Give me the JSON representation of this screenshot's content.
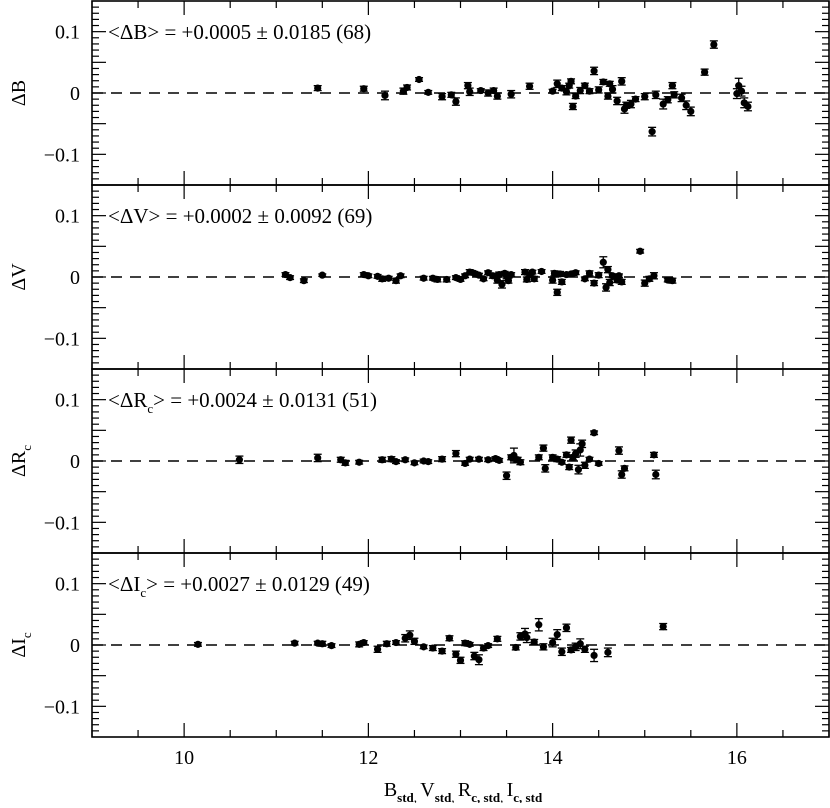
{
  "chart_data": {
    "type": "scatter",
    "xlabel": {
      "parts": [
        {
          "main": "B",
          "sub": "std"
        },
        {
          "main": "V",
          "sub": "std"
        },
        {
          "main": "R",
          "sub": "c, std"
        },
        {
          "main": "I",
          "sub": "c, std"
        }
      ],
      "separator": ",  "
    },
    "xlim": [
      9,
      17
    ],
    "x_ticks": [
      10,
      12,
      14,
      16
    ],
    "ylim": [
      -0.15,
      0.15
    ],
    "y_ticks": [
      0.1,
      0,
      -0.1
    ],
    "y_tick_labels": [
      "0.1",
      "0",
      "−0.1"
    ],
    "reference_line": {
      "y": 0,
      "style": "dashed"
    },
    "panels": [
      {
        "ylabel": {
          "main": "ΔB",
          "sub": ""
        },
        "annotation": {
          "pre": "<ΔB",
          "sub": "",
          "post": "> = +0.0005 ± 0.0185 (68)"
        },
        "points": [
          [
            11.45,
            0.008,
            0.004
          ],
          [
            11.95,
            0.007,
            0.004
          ],
          [
            12.18,
            -0.004,
            0.007
          ],
          [
            12.38,
            0.003,
            0.005
          ],
          [
            12.42,
            0.009,
            0.004
          ],
          [
            12.55,
            0.022,
            0.003
          ],
          [
            12.65,
            0.001,
            0.003
          ],
          [
            12.8,
            -0.006,
            0.005
          ],
          [
            12.9,
            -0.003,
            0.004
          ],
          [
            12.95,
            -0.014,
            0.006
          ],
          [
            13.08,
            0.012,
            0.005
          ],
          [
            13.1,
            0.002,
            0.006
          ],
          [
            13.22,
            0.004,
            0.003
          ],
          [
            13.3,
            0.0,
            0.005
          ],
          [
            13.36,
            0.004,
            0.004
          ],
          [
            13.4,
            -0.005,
            0.005
          ],
          [
            13.55,
            -0.002,
            0.006
          ],
          [
            13.75,
            0.011,
            0.005
          ],
          [
            14.0,
            0.003,
            0.003
          ],
          [
            14.05,
            0.015,
            0.006
          ],
          [
            14.1,
            0.008,
            0.004
          ],
          [
            14.15,
            0.002,
            0.005
          ],
          [
            14.18,
            0.012,
            0.004
          ],
          [
            14.2,
            0.019,
            0.004
          ],
          [
            14.22,
            -0.022,
            0.005
          ],
          [
            14.25,
            -0.005,
            0.004
          ],
          [
            14.3,
            0.004,
            0.005
          ],
          [
            14.35,
            0.012,
            0.004
          ],
          [
            14.4,
            0.003,
            0.004
          ],
          [
            14.45,
            0.036,
            0.006
          ],
          [
            14.5,
            0.005,
            0.005
          ],
          [
            14.55,
            0.018,
            0.004
          ],
          [
            14.6,
            -0.005,
            0.005
          ],
          [
            14.62,
            0.015,
            0.004
          ],
          [
            14.65,
            0.006,
            0.006
          ],
          [
            14.7,
            -0.013,
            0.006
          ],
          [
            14.75,
            0.019,
            0.006
          ],
          [
            14.78,
            -0.026,
            0.007
          ],
          [
            14.8,
            -0.02,
            0.005
          ],
          [
            14.85,
            -0.018,
            0.006
          ],
          [
            14.9,
            -0.01,
            0.004
          ],
          [
            15.0,
            -0.006,
            0.005
          ],
          [
            15.08,
            -0.063,
            0.007
          ],
          [
            15.12,
            -0.003,
            0.006
          ],
          [
            15.2,
            -0.018,
            0.008
          ],
          [
            15.25,
            -0.011,
            0.005
          ],
          [
            15.3,
            0.012,
            0.005
          ],
          [
            15.32,
            -0.003,
            0.005
          ],
          [
            15.4,
            -0.008,
            0.006
          ],
          [
            15.45,
            -0.02,
            0.007
          ],
          [
            15.5,
            -0.03,
            0.007
          ],
          [
            15.65,
            0.034,
            0.005
          ],
          [
            15.75,
            0.079,
            0.006
          ],
          [
            16.0,
            -0.001,
            0.008
          ],
          [
            16.02,
            0.012,
            0.012
          ],
          [
            16.05,
            0.003,
            0.008
          ],
          [
            16.08,
            -0.016,
            0.008
          ],
          [
            16.12,
            -0.022,
            0.007
          ]
        ]
      },
      {
        "ylabel": {
          "main": "ΔV",
          "sub": ""
        },
        "annotation": {
          "pre": "<ΔV",
          "sub": "",
          "post": "> = +0.0002 ± 0.0092 (69)"
        },
        "points": [
          [
            11.1,
            0.004,
            0.003
          ],
          [
            11.15,
            -0.001,
            0.003
          ],
          [
            11.3,
            -0.006,
            0.003
          ],
          [
            11.5,
            0.003,
            0.002
          ],
          [
            11.95,
            0.004,
            0.003
          ],
          [
            12.0,
            0.002,
            0.003
          ],
          [
            12.1,
            0.001,
            0.003
          ],
          [
            12.15,
            -0.003,
            0.004
          ],
          [
            12.22,
            -0.002,
            0.003
          ],
          [
            12.3,
            -0.006,
            0.004
          ],
          [
            12.35,
            0.002,
            0.003
          ],
          [
            12.6,
            -0.002,
            0.003
          ],
          [
            12.7,
            -0.002,
            0.003
          ],
          [
            12.75,
            -0.004,
            0.004
          ],
          [
            12.85,
            -0.004,
            0.004
          ],
          [
            12.95,
            -0.001,
            0.003
          ],
          [
            13.0,
            -0.004,
            0.003
          ],
          [
            13.05,
            0.002,
            0.003
          ],
          [
            13.1,
            0.008,
            0.004
          ],
          [
            13.15,
            0.006,
            0.003
          ],
          [
            13.2,
            0.003,
            0.003
          ],
          [
            13.25,
            -0.003,
            0.003
          ],
          [
            13.3,
            0.007,
            0.003
          ],
          [
            13.35,
            0.002,
            0.004
          ],
          [
            13.4,
            -0.005,
            0.005
          ],
          [
            13.42,
            0.004,
            0.004
          ],
          [
            13.45,
            -0.012,
            0.006
          ],
          [
            13.48,
            0.006,
            0.003
          ],
          [
            13.5,
            0.001,
            0.004
          ],
          [
            13.52,
            -0.006,
            0.004
          ],
          [
            13.55,
            0.004,
            0.003
          ],
          [
            13.7,
            0.008,
            0.004
          ],
          [
            13.72,
            -0.004,
            0.004
          ],
          [
            13.75,
            0.004,
            0.003
          ],
          [
            13.78,
            0.008,
            0.003
          ],
          [
            13.8,
            -0.003,
            0.004
          ],
          [
            13.88,
            0.009,
            0.003
          ],
          [
            14.0,
            -0.005,
            0.005
          ],
          [
            14.02,
            0.006,
            0.004
          ],
          [
            14.05,
            -0.025,
            0.005
          ],
          [
            14.08,
            0.005,
            0.004
          ],
          [
            14.1,
            -0.008,
            0.004
          ],
          [
            14.15,
            0.004,
            0.003
          ],
          [
            14.2,
            0.005,
            0.003
          ],
          [
            14.25,
            0.007,
            0.003
          ],
          [
            14.35,
            -0.003,
            0.003
          ],
          [
            14.4,
            0.006,
            0.004
          ],
          [
            14.45,
            -0.01,
            0.004
          ],
          [
            14.5,
            0.003,
            0.004
          ],
          [
            14.55,
            0.024,
            0.009
          ],
          [
            14.58,
            -0.017,
            0.006
          ],
          [
            14.6,
            0.012,
            0.005
          ],
          [
            14.62,
            -0.009,
            0.005
          ],
          [
            14.65,
            0.002,
            0.003
          ],
          [
            14.7,
            -0.005,
            0.004
          ],
          [
            14.72,
            0.002,
            0.003
          ],
          [
            14.75,
            -0.008,
            0.004
          ],
          [
            14.95,
            0.042,
            0.003
          ],
          [
            15.0,
            -0.01,
            0.005
          ],
          [
            15.05,
            -0.003,
            0.004
          ],
          [
            15.1,
            0.002,
            0.005
          ],
          [
            15.25,
            -0.005,
            0.003
          ],
          [
            15.3,
            -0.006,
            0.004
          ]
        ]
      },
      {
        "ylabel": {
          "main": "ΔR",
          "sub": "c"
        },
        "annotation": {
          "pre": "<ΔR",
          "sub": "c",
          "post": "> = +0.0024 ± 0.0131 (51)"
        },
        "points": [
          [
            10.6,
            0.002,
            0.006
          ],
          [
            11.45,
            0.005,
            0.006
          ],
          [
            11.7,
            0.002,
            0.004
          ],
          [
            11.75,
            -0.003,
            0.004
          ],
          [
            11.9,
            -0.002,
            0.003
          ],
          [
            12.15,
            0.002,
            0.004
          ],
          [
            12.25,
            0.003,
            0.004
          ],
          [
            12.3,
            -0.001,
            0.003
          ],
          [
            12.4,
            0.002,
            0.003
          ],
          [
            12.5,
            -0.003,
            0.003
          ],
          [
            12.6,
            0.0,
            0.003
          ],
          [
            12.65,
            -0.001,
            0.003
          ],
          [
            12.8,
            0.003,
            0.004
          ],
          [
            12.95,
            0.012,
            0.005
          ],
          [
            13.05,
            -0.004,
            0.003
          ],
          [
            13.1,
            0.003,
            0.003
          ],
          [
            13.2,
            0.003,
            0.003
          ],
          [
            13.3,
            0.002,
            0.003
          ],
          [
            13.38,
            0.004,
            0.003
          ],
          [
            13.42,
            0.001,
            0.003
          ],
          [
            13.5,
            -0.024,
            0.006
          ],
          [
            13.55,
            0.006,
            0.004
          ],
          [
            13.58,
            0.009,
            0.012
          ],
          [
            13.62,
            0.002,
            0.004
          ],
          [
            13.65,
            -0.002,
            0.004
          ],
          [
            13.85,
            0.006,
            0.004
          ],
          [
            13.9,
            0.021,
            0.005
          ],
          [
            13.92,
            -0.012,
            0.006
          ],
          [
            14.0,
            0.006,
            0.004
          ],
          [
            14.05,
            0.003,
            0.004
          ],
          [
            14.1,
            -0.002,
            0.003
          ],
          [
            14.15,
            0.01,
            0.004
          ],
          [
            14.18,
            -0.01,
            0.004
          ],
          [
            14.2,
            0.034,
            0.005
          ],
          [
            14.22,
            0.006,
            0.004
          ],
          [
            14.25,
            0.012,
            0.006
          ],
          [
            14.28,
            -0.014,
            0.007
          ],
          [
            14.3,
            0.018,
            0.01
          ],
          [
            14.32,
            0.028,
            0.006
          ],
          [
            14.35,
            -0.007,
            0.005
          ],
          [
            14.4,
            0.003,
            0.003
          ],
          [
            14.45,
            0.046,
            0.003
          ],
          [
            14.5,
            -0.004,
            0.003
          ],
          [
            14.72,
            0.017,
            0.006
          ],
          [
            14.75,
            -0.022,
            0.006
          ],
          [
            14.78,
            -0.012,
            0.004
          ],
          [
            15.1,
            0.01,
            0.004
          ],
          [
            15.12,
            -0.022,
            0.007
          ]
        ]
      },
      {
        "ylabel": {
          "main": "ΔI",
          "sub": "c"
        },
        "annotation": {
          "pre": "<ΔI",
          "sub": "c",
          "post": "> = +0.0027 ± 0.0129 (49)"
        },
        "points": [
          [
            10.15,
            0.001,
            0.003
          ],
          [
            11.2,
            0.003,
            0.003
          ],
          [
            11.45,
            0.003,
            0.003
          ],
          [
            11.5,
            0.002,
            0.004
          ],
          [
            11.6,
            -0.001,
            0.003
          ],
          [
            11.9,
            0.001,
            0.004
          ],
          [
            11.95,
            0.004,
            0.003
          ],
          [
            12.1,
            -0.007,
            0.005
          ],
          [
            12.2,
            0.002,
            0.004
          ],
          [
            12.3,
            0.004,
            0.003
          ],
          [
            12.4,
            0.011,
            0.006
          ],
          [
            12.45,
            0.016,
            0.007
          ],
          [
            12.5,
            0.006,
            0.005
          ],
          [
            12.6,
            -0.003,
            0.003
          ],
          [
            12.7,
            -0.005,
            0.004
          ],
          [
            12.8,
            -0.01,
            0.004
          ],
          [
            12.88,
            0.011,
            0.004
          ],
          [
            12.95,
            -0.015,
            0.005
          ],
          [
            13.0,
            -0.025,
            0.005
          ],
          [
            13.05,
            0.003,
            0.004
          ],
          [
            13.1,
            0.001,
            0.003
          ],
          [
            13.15,
            -0.018,
            0.006
          ],
          [
            13.2,
            -0.024,
            0.008
          ],
          [
            13.25,
            -0.005,
            0.004
          ],
          [
            13.3,
            -0.001,
            0.003
          ],
          [
            13.4,
            0.01,
            0.004
          ],
          [
            13.6,
            -0.004,
            0.004
          ],
          [
            13.65,
            0.014,
            0.006
          ],
          [
            13.7,
            0.018,
            0.009
          ],
          [
            13.72,
            0.012,
            0.008
          ],
          [
            13.8,
            0.005,
            0.004
          ],
          [
            13.85,
            0.033,
            0.01
          ],
          [
            13.9,
            -0.003,
            0.005
          ],
          [
            14.0,
            0.004,
            0.007
          ],
          [
            14.05,
            0.017,
            0.008
          ],
          [
            14.1,
            -0.011,
            0.006
          ],
          [
            14.15,
            0.028,
            0.006
          ],
          [
            14.2,
            -0.008,
            0.004
          ],
          [
            14.25,
            -0.003,
            0.006
          ],
          [
            14.3,
            0.002,
            0.008
          ],
          [
            14.35,
            -0.007,
            0.005
          ],
          [
            14.45,
            -0.017,
            0.01
          ],
          [
            14.6,
            -0.012,
            0.007
          ],
          [
            15.2,
            0.03,
            0.005
          ]
        ]
      }
    ]
  }
}
